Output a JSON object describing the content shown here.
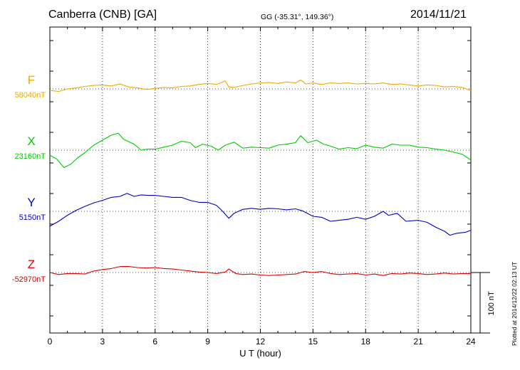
{
  "header": {
    "station": "Canberra (CNB)  [GA]",
    "coords": "GG (-35.31°, 149.36°)",
    "date": "2014/11/21"
  },
  "footer_note": "Plotted at 2014/12/22 02:13 UT",
  "chart_data": {
    "type": "line",
    "xlabel": "U T (hour)",
    "x_ticks": [
      "0",
      "3",
      "6",
      "9",
      "12",
      "15",
      "18",
      "21",
      "24"
    ],
    "xlim": [
      0,
      24
    ],
    "grid": "dotted",
    "scale_bar": "100 nT",
    "series": [
      {
        "name": "F",
        "baseline": "58040nT",
        "color": "#f0a800",
        "points": [
          [
            0,
            -3
          ],
          [
            0.5,
            -5
          ],
          [
            1,
            0
          ],
          [
            1.5,
            2
          ],
          [
            2,
            5
          ],
          [
            2.5,
            7
          ],
          [
            3,
            8
          ],
          [
            3.5,
            6
          ],
          [
            4,
            10
          ],
          [
            4.5,
            4
          ],
          [
            5,
            2
          ],
          [
            5.5,
            -1
          ],
          [
            6,
            1
          ],
          [
            6.5,
            3
          ],
          [
            7,
            2
          ],
          [
            7.5,
            5
          ],
          [
            8,
            6
          ],
          [
            8.5,
            9
          ],
          [
            9,
            11
          ],
          [
            9.5,
            9
          ],
          [
            10,
            16
          ],
          [
            10.2,
            4
          ],
          [
            10.5,
            3
          ],
          [
            11,
            7
          ],
          [
            11.5,
            10
          ],
          [
            12,
            12
          ],
          [
            12.5,
            13
          ],
          [
            13,
            11
          ],
          [
            13.5,
            14
          ],
          [
            14,
            12
          ],
          [
            14.3,
            18
          ],
          [
            14.6,
            10
          ],
          [
            15,
            12
          ],
          [
            15.5,
            9
          ],
          [
            16,
            12
          ],
          [
            16.5,
            11
          ],
          [
            17,
            12
          ],
          [
            17.5,
            10
          ],
          [
            18,
            11
          ],
          [
            18.5,
            10
          ],
          [
            19,
            12
          ],
          [
            19.5,
            9
          ],
          [
            20,
            10
          ],
          [
            20.5,
            8
          ],
          [
            21,
            6
          ],
          [
            21.5,
            8
          ],
          [
            22,
            7
          ],
          [
            22.5,
            4
          ],
          [
            23,
            5
          ],
          [
            23.5,
            3
          ],
          [
            24,
            -3
          ]
        ]
      },
      {
        "name": "X",
        "baseline": "23160nT",
        "color": "#00cc00",
        "points": [
          [
            0,
            -10
          ],
          [
            0.4,
            -18
          ],
          [
            0.8,
            -35
          ],
          [
            1.2,
            -28
          ],
          [
            1.6,
            -15
          ],
          [
            2,
            -5
          ],
          [
            2.5,
            10
          ],
          [
            3,
            20
          ],
          [
            3.5,
            30
          ],
          [
            3.9,
            34
          ],
          [
            4.2,
            22
          ],
          [
            4.8,
            12
          ],
          [
            5.2,
            0
          ],
          [
            5.6,
            2
          ],
          [
            6,
            2
          ],
          [
            6.5,
            6
          ],
          [
            7,
            10
          ],
          [
            7.5,
            18
          ],
          [
            8,
            15
          ],
          [
            8.3,
            5
          ],
          [
            8.7,
            12
          ],
          [
            9.2,
            8
          ],
          [
            9.6,
            0
          ],
          [
            10,
            10
          ],
          [
            10.5,
            16
          ],
          [
            11,
            4
          ],
          [
            11.5,
            6
          ],
          [
            12,
            5
          ],
          [
            12.5,
            4
          ],
          [
            13,
            10
          ],
          [
            13.5,
            12
          ],
          [
            14,
            15
          ],
          [
            14.3,
            29
          ],
          [
            14.7,
            15
          ],
          [
            15.2,
            20
          ],
          [
            15.6,
            12
          ],
          [
            16,
            8
          ],
          [
            16.5,
            2
          ],
          [
            17,
            5
          ],
          [
            17.5,
            3
          ],
          [
            18,
            10
          ],
          [
            18.5,
            6
          ],
          [
            19,
            4
          ],
          [
            19.5,
            12
          ],
          [
            20,
            10
          ],
          [
            20.5,
            10
          ],
          [
            21,
            6
          ],
          [
            21.5,
            5
          ],
          [
            22,
            2
          ],
          [
            22.5,
            0
          ],
          [
            23,
            -4
          ],
          [
            23.5,
            -8
          ],
          [
            24,
            -20
          ]
        ]
      },
      {
        "name": "Y",
        "baseline": "5150nT",
        "color": "#0000cc",
        "points": [
          [
            0,
            -30
          ],
          [
            0.5,
            -20
          ],
          [
            1,
            -8
          ],
          [
            1.5,
            2
          ],
          [
            2,
            10
          ],
          [
            2.5,
            17
          ],
          [
            3,
            22
          ],
          [
            3.5,
            28
          ],
          [
            4,
            30
          ],
          [
            4.4,
            36
          ],
          [
            4.8,
            30
          ],
          [
            5.2,
            33
          ],
          [
            5.6,
            32
          ],
          [
            6,
            32
          ],
          [
            6.5,
            30
          ],
          [
            7,
            28
          ],
          [
            7.5,
            28
          ],
          [
            8,
            22
          ],
          [
            8.5,
            18
          ],
          [
            9,
            18
          ],
          [
            9.5,
            12
          ],
          [
            9.8,
            2
          ],
          [
            10.2,
            -14
          ],
          [
            10.5,
            -4
          ],
          [
            11,
            4
          ],
          [
            11.5,
            6
          ],
          [
            12,
            4
          ],
          [
            12.5,
            6
          ],
          [
            13,
            5
          ],
          [
            13.5,
            3
          ],
          [
            14,
            5
          ],
          [
            14.4,
            1
          ],
          [
            15,
            -10
          ],
          [
            15.5,
            -12
          ],
          [
            16,
            -20
          ],
          [
            16.5,
            -18
          ],
          [
            17,
            -16
          ],
          [
            17.5,
            -12
          ],
          [
            18,
            -16
          ],
          [
            18.5,
            -10
          ],
          [
            19,
            0
          ],
          [
            19.3,
            -8
          ],
          [
            19.8,
            -4
          ],
          [
            20.3,
            -20
          ],
          [
            21,
            -18
          ],
          [
            21.5,
            -22
          ],
          [
            22,
            -32
          ],
          [
            22.5,
            -40
          ],
          [
            22.8,
            -48
          ],
          [
            23.2,
            -44
          ],
          [
            23.7,
            -42
          ],
          [
            24,
            -38
          ]
        ]
      },
      {
        "name": "Z",
        "baseline": "-52970nT",
        "color": "#dd0000",
        "points": [
          [
            0,
            0
          ],
          [
            0.5,
            -4
          ],
          [
            1,
            -2
          ],
          [
            1.5,
            -2
          ],
          [
            2,
            -3
          ],
          [
            2.5,
            3
          ],
          [
            3,
            6
          ],
          [
            3.5,
            8
          ],
          [
            4,
            12
          ],
          [
            4.5,
            12
          ],
          [
            5,
            10
          ],
          [
            5.5,
            9
          ],
          [
            6,
            10
          ],
          [
            6.5,
            8
          ],
          [
            7,
            7
          ],
          [
            7.5,
            5
          ],
          [
            8,
            3
          ],
          [
            8.5,
            1
          ],
          [
            9,
            0
          ],
          [
            9.5,
            -2
          ],
          [
            10,
            1
          ],
          [
            10.2,
            7
          ],
          [
            10.6,
            -2
          ],
          [
            11,
            -4
          ],
          [
            11.5,
            -3
          ],
          [
            12,
            -5
          ],
          [
            12.5,
            -6
          ],
          [
            13,
            -5
          ],
          [
            13.5,
            -4
          ],
          [
            14,
            -3
          ],
          [
            14.5,
            2
          ],
          [
            15,
            0
          ],
          [
            15.5,
            2
          ],
          [
            16,
            -2
          ],
          [
            16.5,
            -4
          ],
          [
            17,
            -3
          ],
          [
            17.5,
            -2
          ],
          [
            18,
            -5
          ],
          [
            18.5,
            -3
          ],
          [
            19,
            -6
          ],
          [
            19.5,
            -2
          ],
          [
            20,
            -3
          ],
          [
            20.5,
            -1
          ],
          [
            21,
            -2
          ],
          [
            21.5,
            -4
          ],
          [
            22,
            -3
          ],
          [
            22.5,
            -1
          ],
          [
            23,
            -3
          ],
          [
            23.5,
            -2
          ],
          [
            24,
            -2
          ]
        ]
      }
    ]
  }
}
